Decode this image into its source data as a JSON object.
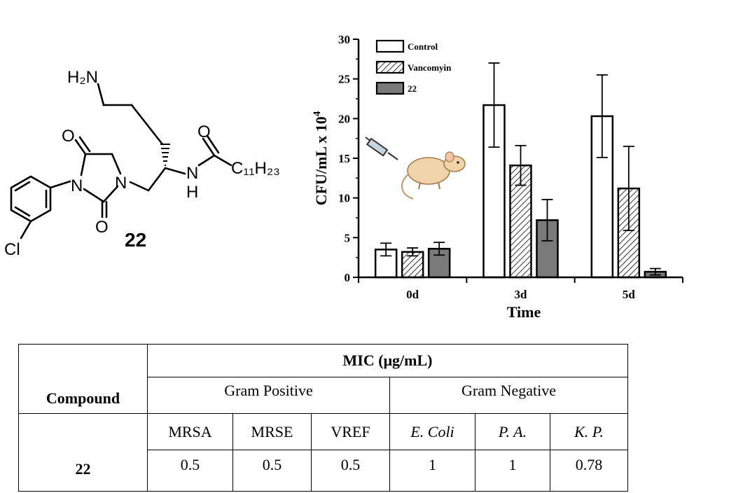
{
  "molecule": {
    "labels": {
      "nh2": "H₂N",
      "o_top": "O",
      "n1": "N",
      "n2": "N",
      "o_bottom": "O",
      "cl": "Cl",
      "o_amide": "O",
      "n_amide": "N",
      "h_amide": "H",
      "chain": "C₁₁H₂₃"
    },
    "compound_number": "22"
  },
  "chart_data": {
    "type": "bar",
    "categories": [
      "0d",
      "3d",
      "5d"
    ],
    "series": [
      {
        "name": "Control",
        "values": [
          3.5,
          21.7,
          20.3
        ],
        "errors": [
          0.8,
          5.3,
          5.2
        ],
        "fill": "#ffffff"
      },
      {
        "name": "Vancomyin",
        "values": [
          3.2,
          14.1,
          11.2
        ],
        "errors": [
          0.5,
          2.5,
          5.3
        ],
        "fill": "hatch"
      },
      {
        "name": "22",
        "values": [
          3.6,
          7.2,
          0.7
        ],
        "errors": [
          0.8,
          2.6,
          0.4
        ],
        "fill": "#7a7a7a"
      }
    ],
    "xlabel": "Time",
    "ylabel": "CFU/mL x 10",
    "ylabel_exponent": "4",
    "yticks": [
      "0",
      "5",
      "10",
      "15",
      "20",
      "25",
      "30"
    ],
    "ylim": [
      0,
      30
    ],
    "legend_position": "top-left",
    "grid": false,
    "inset_icon": "syringe-and-mouse-icon"
  },
  "table": {
    "header_compound": "Compound",
    "header_mic": "MIC (μg/mL)",
    "group_positive": "Gram Positive",
    "group_negative": "Gram Negative",
    "columns": [
      "MRSA",
      "MRSE",
      "VREF",
      "E. Coli",
      "P. A.",
      "K. P."
    ],
    "row_compound": "22",
    "row_values": [
      "0.5",
      "0.5",
      "0.5",
      "1",
      "1",
      "0.78"
    ]
  }
}
